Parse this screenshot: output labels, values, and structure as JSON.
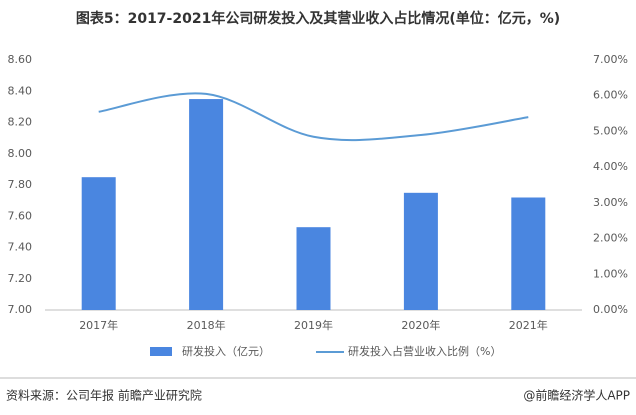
{
  "chart_data": {
    "type": "bar",
    "title": "图表5：2017-2021年公司研发投入及其营业收入占比情况(单位：亿元，%)",
    "categories": [
      "2017年",
      "2018年",
      "2019年",
      "2020年",
      "2021年"
    ],
    "series": [
      {
        "name": "研发投入（亿元）",
        "type": "bar",
        "color": "#4a86e0",
        "values": [
          7.85,
          8.35,
          7.53,
          7.75,
          7.72
        ]
      },
      {
        "name": "研发投入占营业收入比例（%）",
        "type": "line",
        "axis": "y2",
        "color": "#5b9bd5",
        "values": [
          5.55,
          6.05,
          4.85,
          4.9,
          5.4
        ]
      }
    ],
    "ylim": [
      7.0,
      8.6
    ],
    "yticks": [
      {
        "value": 7.0,
        "label": "7.00"
      },
      {
        "value": 7.2,
        "label": "7.20"
      },
      {
        "value": 7.4,
        "label": "7.40"
      },
      {
        "value": 7.6,
        "label": "7.60"
      },
      {
        "value": 7.8,
        "label": "7.80"
      },
      {
        "value": 8.0,
        "label": "8.00"
      },
      {
        "value": 8.2,
        "label": "8.20"
      },
      {
        "value": 8.4,
        "label": "8.40"
      },
      {
        "value": 8.6,
        "label": "8.60"
      }
    ],
    "y2lim": [
      0,
      7
    ],
    "y2ticks": [
      {
        "value": 0,
        "label": "0.00%"
      },
      {
        "value": 1,
        "label": "1.00%"
      },
      {
        "value": 2,
        "label": "2.00%"
      },
      {
        "value": 3,
        "label": "3.00%"
      },
      {
        "value": 4,
        "label": "4.00%"
      },
      {
        "value": 5,
        "label": "5.00%"
      },
      {
        "value": 6,
        "label": "6.00%"
      },
      {
        "value": 7,
        "label": "7.00%"
      }
    ],
    "grid": false,
    "legend": "bottom",
    "source": "资料来源：公司年报 前瞻产业研究院",
    "credit": "@前瞻经济学人APP"
  }
}
